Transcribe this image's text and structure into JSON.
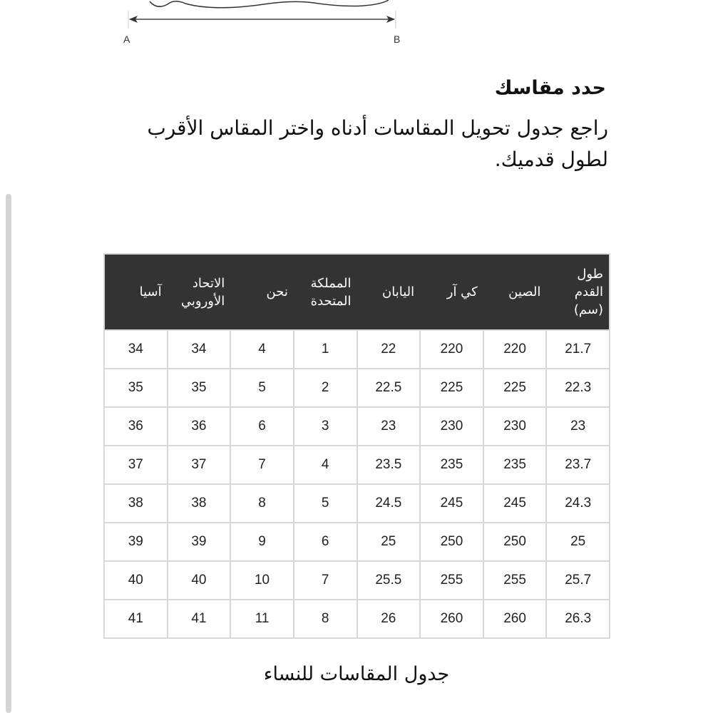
{
  "illustration": {
    "label_a": "A",
    "label_b": "B"
  },
  "heading": "حدد مقاسك",
  "description": "راجع جدول تحويل المقاسات أدناه واختر المقاس الأقرب لطول قدميك.",
  "table": {
    "headers": [
      "طول القدم (سم)",
      "الصين",
      "كي آر",
      "اليابان",
      "المملكة المتحدة",
      "نحن",
      "الاتحاد الأوروبي",
      "آسيا"
    ],
    "rows": [
      [
        "21.7",
        "220",
        "220",
        "22",
        "1",
        "4",
        "34",
        "34"
      ],
      [
        "22.3",
        "225",
        "225",
        "22.5",
        "2",
        "5",
        "35",
        "35"
      ],
      [
        "23",
        "230",
        "230",
        "23",
        "3",
        "6",
        "36",
        "36"
      ],
      [
        "23.7",
        "235",
        "235",
        "23.5",
        "4",
        "7",
        "37",
        "37"
      ],
      [
        "24.3",
        "245",
        "245",
        "24.5",
        "5",
        "8",
        "38",
        "38"
      ],
      [
        "25",
        "250",
        "250",
        "25",
        "6",
        "9",
        "39",
        "39"
      ],
      [
        "25.7",
        "255",
        "255",
        "25.5",
        "7",
        "10",
        "40",
        "40"
      ],
      [
        "26.3",
        "260",
        "260",
        "26",
        "8",
        "11",
        "41",
        "41"
      ]
    ]
  },
  "caption": "جدول المقاسات للنساء",
  "colors": {
    "header_bg": "#333333",
    "border": "#d8d8d8"
  }
}
